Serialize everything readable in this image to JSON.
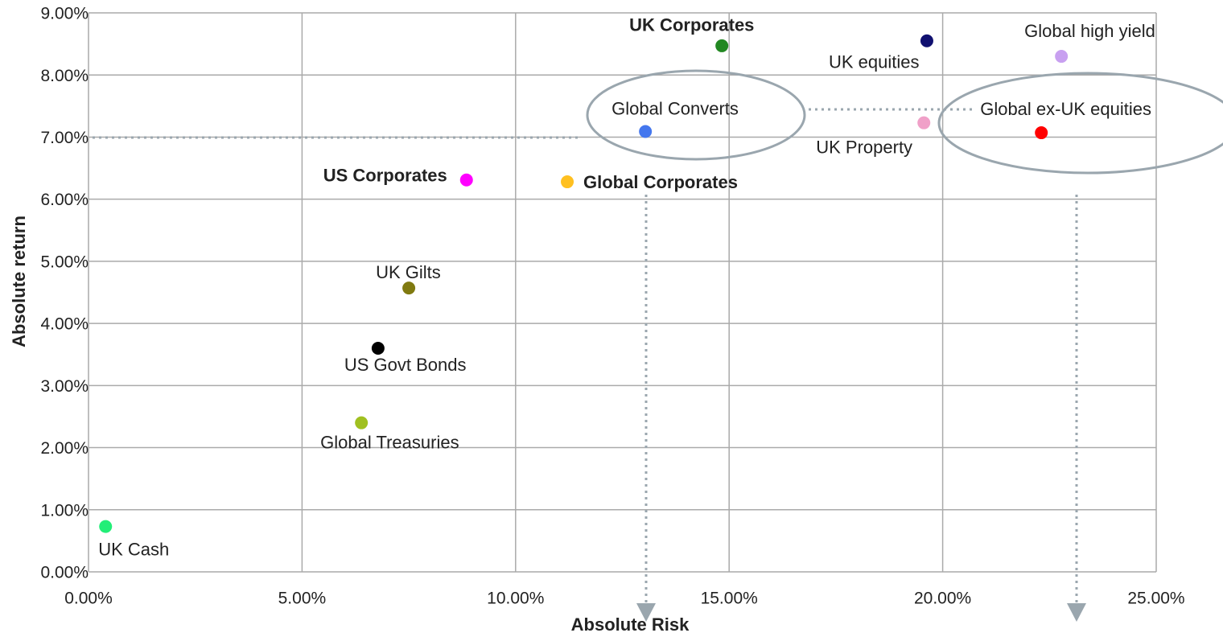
{
  "chart_data": {
    "type": "scatter",
    "xlabel": "Absolute Risk",
    "ylabel": "Absolute return",
    "xlim": [
      0,
      25
    ],
    "ylim": [
      0,
      9
    ],
    "grid": true,
    "xticks": [
      {
        "value": 0,
        "label": "0.00%"
      },
      {
        "value": 5,
        "label": "5.00%"
      },
      {
        "value": 10,
        "label": "10.00%"
      },
      {
        "value": 15,
        "label": "15.00%"
      },
      {
        "value": 20,
        "label": "20.00%"
      },
      {
        "value": 25,
        "label": "25.00%"
      }
    ],
    "yticks": [
      {
        "value": 0,
        "label": "0.00%"
      },
      {
        "value": 1,
        "label": "1.00%"
      },
      {
        "value": 2,
        "label": "2.00%"
      },
      {
        "value": 3,
        "label": "3.00%"
      },
      {
        "value": 4,
        "label": "4.00%"
      },
      {
        "value": 5,
        "label": "5.00%"
      },
      {
        "value": 6,
        "label": "6.00%"
      },
      {
        "value": 7,
        "label": "7.00%"
      },
      {
        "value": 8,
        "label": "8.00%"
      },
      {
        "value": 9,
        "label": "9.00%"
      }
    ],
    "points": [
      {
        "name": "UK Cash",
        "x": 0.4,
        "y": 0.73,
        "color": "#22ee77",
        "bold": false
      },
      {
        "name": "Global Treasuries",
        "x": 6.39,
        "y": 2.4,
        "color": "#a0c020",
        "bold": false
      },
      {
        "name": "US Govt Bonds",
        "x": 6.78,
        "y": 3.6,
        "color": "#000000",
        "bold": false
      },
      {
        "name": "UK Gilts",
        "x": 7.5,
        "y": 4.57,
        "color": "#807a10",
        "bold": false
      },
      {
        "name": "US Corporates",
        "x": 8.85,
        "y": 6.31,
        "color": "#ff00ff",
        "bold": true
      },
      {
        "name": "Global Corporates",
        "x": 11.21,
        "y": 6.28,
        "color": "#ffc020",
        "bold": true
      },
      {
        "name": "Global Converts",
        "x": 13.04,
        "y": 7.09,
        "color": "#4477ee",
        "bold": false
      },
      {
        "name": "UK Corporates",
        "x": 14.83,
        "y": 8.47,
        "color": "#228822",
        "bold": true
      },
      {
        "name": "UK equities",
        "x": 19.63,
        "y": 8.55,
        "color": "#101070",
        "bold": false
      },
      {
        "name": "UK Property",
        "x": 19.56,
        "y": 7.23,
        "color": "#f0a0c8",
        "bold": false
      },
      {
        "name": "Global ex-UK equities",
        "x": 22.31,
        "y": 7.07,
        "color": "#ff0000",
        "bold": false
      },
      {
        "name": "Global high yield",
        "x": 22.78,
        "y": 8.3,
        "color": "#c8a0f0",
        "bold": false
      }
    ]
  }
}
